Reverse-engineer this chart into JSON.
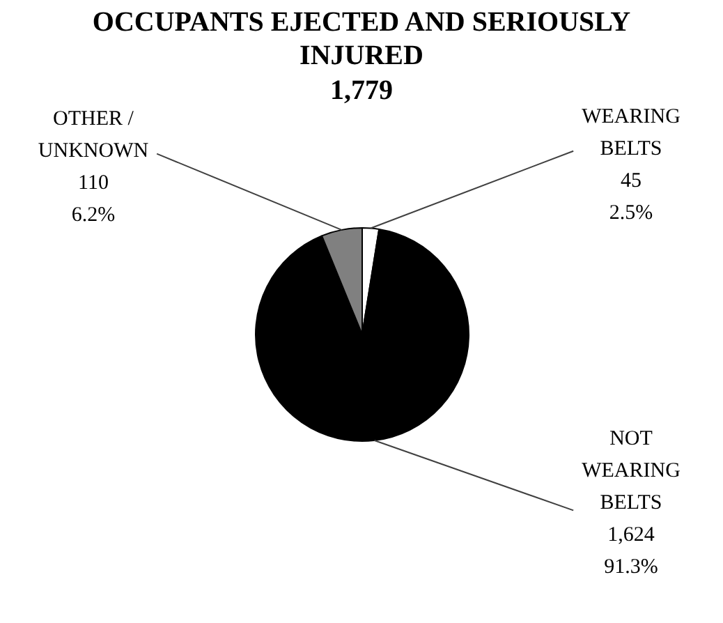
{
  "chart_data": {
    "type": "pie",
    "title": "OCCUPANTS EJECTED AND SERIOUSLY INJURED",
    "subtitle": "1,779",
    "categories": [
      "WEARING BELTS",
      "NOT WEARING BELTS",
      "OTHER / UNKNOWN"
    ],
    "values": [
      45,
      1624,
      110
    ],
    "colors": [
      "#ffffff",
      "#000000",
      "#808080"
    ],
    "value_labels": [
      "45\n2.5%",
      "1,624\n91.3%",
      "110\n6.2%"
    ],
    "legend": false
  }
}
